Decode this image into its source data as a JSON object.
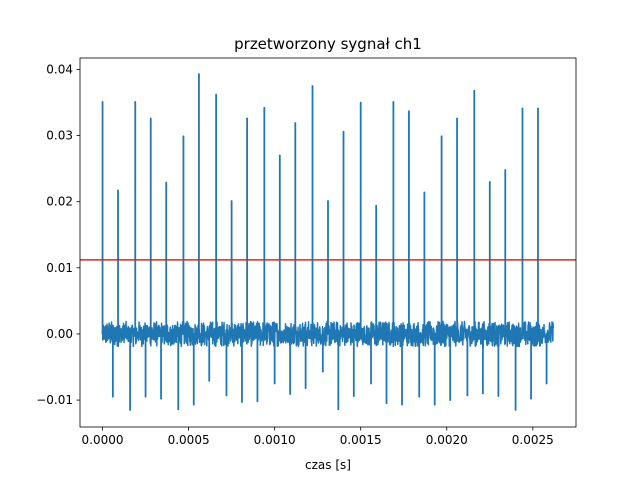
{
  "chart_data": {
    "type": "line",
    "title": "przetworzony sygnał ch1",
    "xlabel": "czas [s]",
    "ylabel": "",
    "xlim": [
      -0.000131,
      0.002751
    ],
    "ylim": [
      -0.01407,
      0.04173
    ],
    "x_ticks": [
      0.0,
      0.0005,
      0.001,
      0.0015,
      0.002,
      0.0025
    ],
    "x_tick_labels": [
      "0.0000",
      "0.0005",
      "0.0010",
      "0.0015",
      "0.0020",
      "0.0025"
    ],
    "y_ticks": [
      -0.01,
      0.0,
      0.01,
      0.02,
      0.03,
      0.04
    ],
    "y_tick_labels": [
      "−0.01",
      "0.00",
      "0.01",
      "0.02",
      "0.03",
      "0.04"
    ],
    "grid": false,
    "series": [
      {
        "color": "#1f77b4",
        "x_range": [
          0.0,
          0.00262
        ],
        "noise_band": [
          -0.0019,
          0.0019
        ],
        "peak_times": [
          0.0,
          9e-05,
          0.00019,
          0.00028,
          0.00037,
          0.00047,
          0.00056,
          0.00066,
          0.00075,
          0.00084,
          0.00094,
          0.00103,
          0.00112,
          0.00122,
          0.00131,
          0.0014,
          0.0015,
          0.00159,
          0.00169,
          0.00178,
          0.00187,
          0.00197,
          0.00206,
          0.00216,
          0.00225,
          0.00234,
          0.00244,
          0.00253
        ],
        "peak_values": [
          0.0351,
          0.0217,
          0.0351,
          0.0326,
          0.0229,
          0.0299,
          0.0393,
          0.0362,
          0.0201,
          0.0326,
          0.0342,
          0.027,
          0.0319,
          0.0375,
          0.0201,
          0.0306,
          0.035,
          0.0194,
          0.0351,
          0.0337,
          0.0214,
          0.0299,
          0.0326,
          0.0368,
          0.023,
          0.0248,
          0.0341,
          0.0341
        ],
        "trough_times": [
          6e-05,
          0.00016,
          0.00025,
          0.00034,
          0.00044,
          0.00053,
          0.00062,
          0.00072,
          0.00081,
          0.0009,
          0.001,
          0.00109,
          0.00118,
          0.00128,
          0.00137,
          0.00146,
          0.00156,
          0.00165,
          0.00174,
          0.00184,
          0.00193,
          0.00202,
          0.00212,
          0.00221,
          0.0023,
          0.0024,
          0.00249,
          0.00258
        ],
        "trough_values": [
          -0.0095,
          -0.0115,
          -0.0095,
          -0.0098,
          -0.0114,
          -0.0107,
          -0.0071,
          -0.0093,
          -0.0103,
          -0.0102,
          -0.0075,
          -0.0091,
          -0.0082,
          -0.0057,
          -0.0114,
          -0.0094,
          -0.0075,
          -0.0105,
          -0.0107,
          -0.0095,
          -0.0107,
          -0.01,
          -0.0093,
          -0.009,
          -0.0094,
          -0.0115,
          -0.0098,
          -0.0075
        ]
      }
    ],
    "threshold": {
      "y": 0.0112,
      "color": "#d62728"
    }
  }
}
